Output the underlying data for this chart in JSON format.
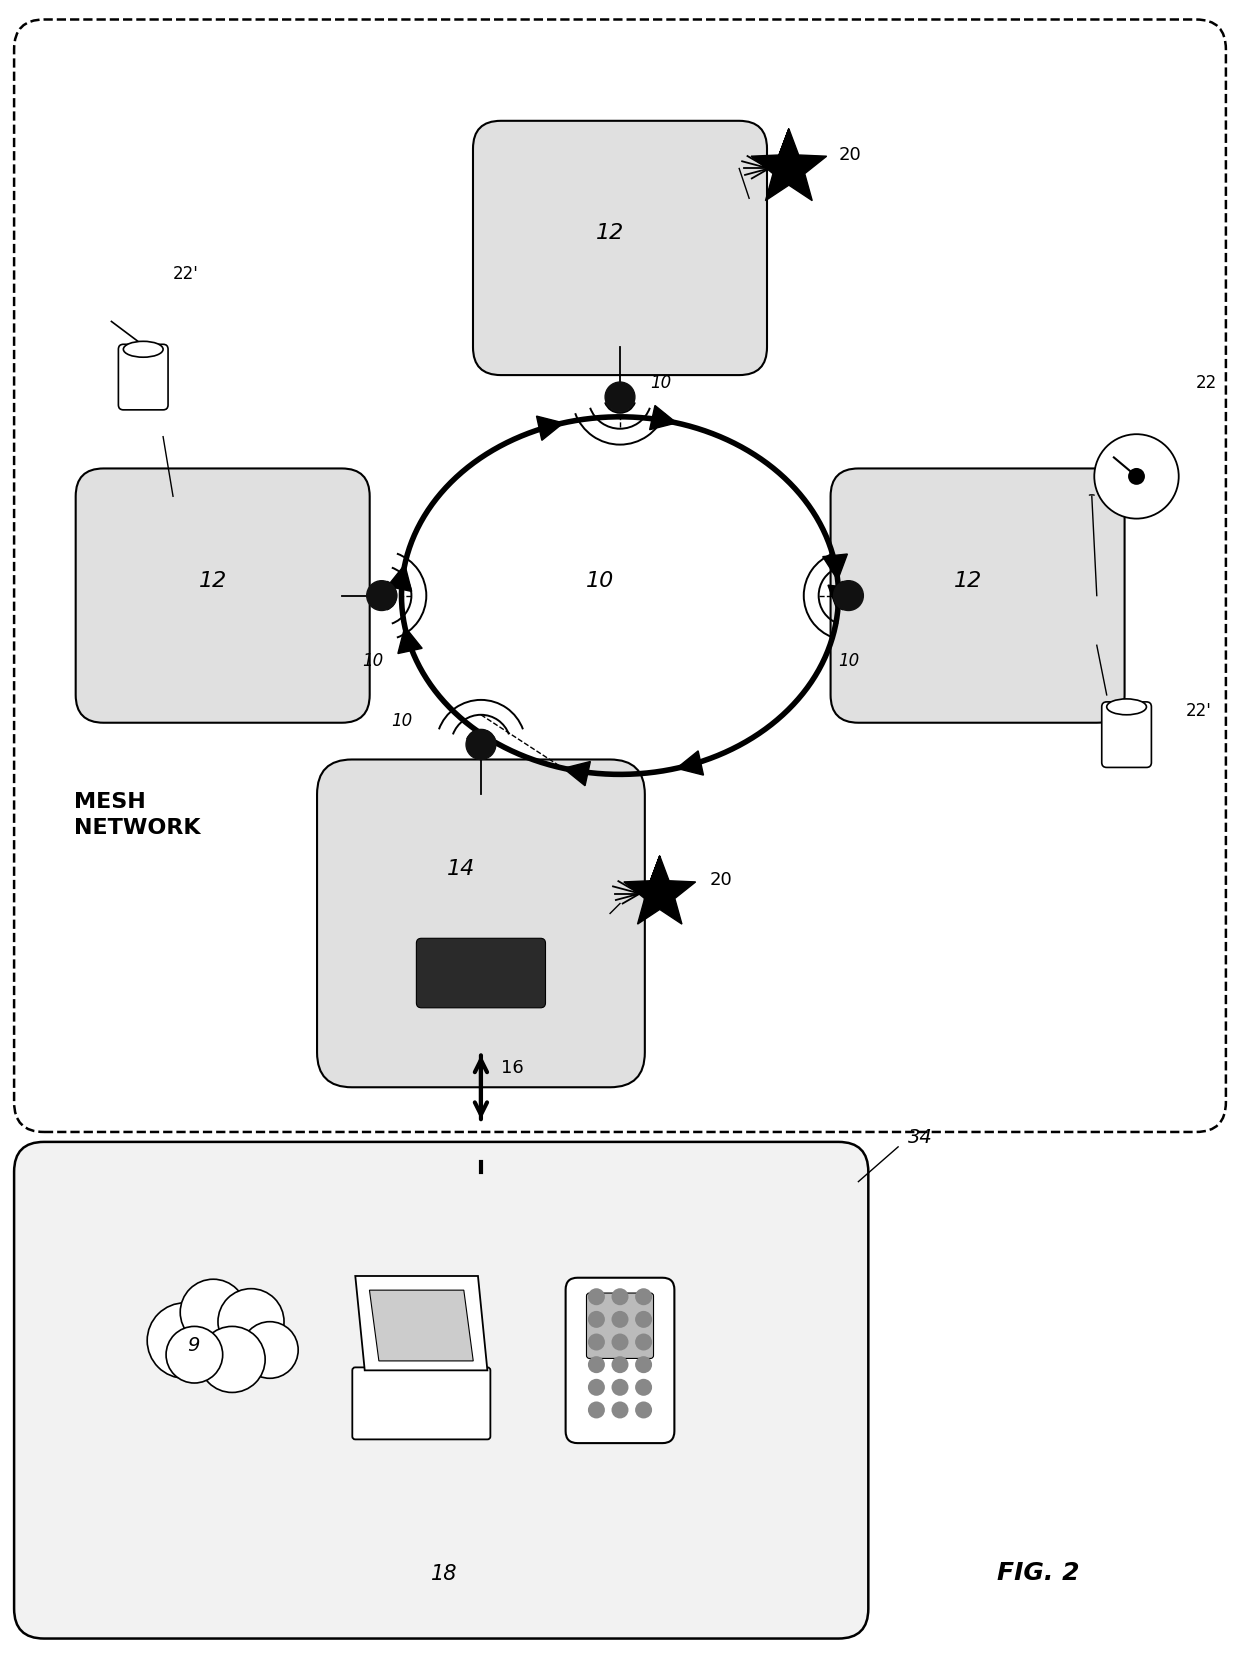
{
  "fig_label": "FIG. 2",
  "bg_color": "#ffffff",
  "box_fill": "#e0e0e0",
  "label_10": "10",
  "label_12": "12",
  "label_14": "14",
  "label_16": "16",
  "label_18": "18",
  "label_20": "20",
  "label_22": "22",
  "label_22p": "22'",
  "label_34": "34",
  "label_9": "9",
  "mesh_label": "MESH\nNETWORK"
}
